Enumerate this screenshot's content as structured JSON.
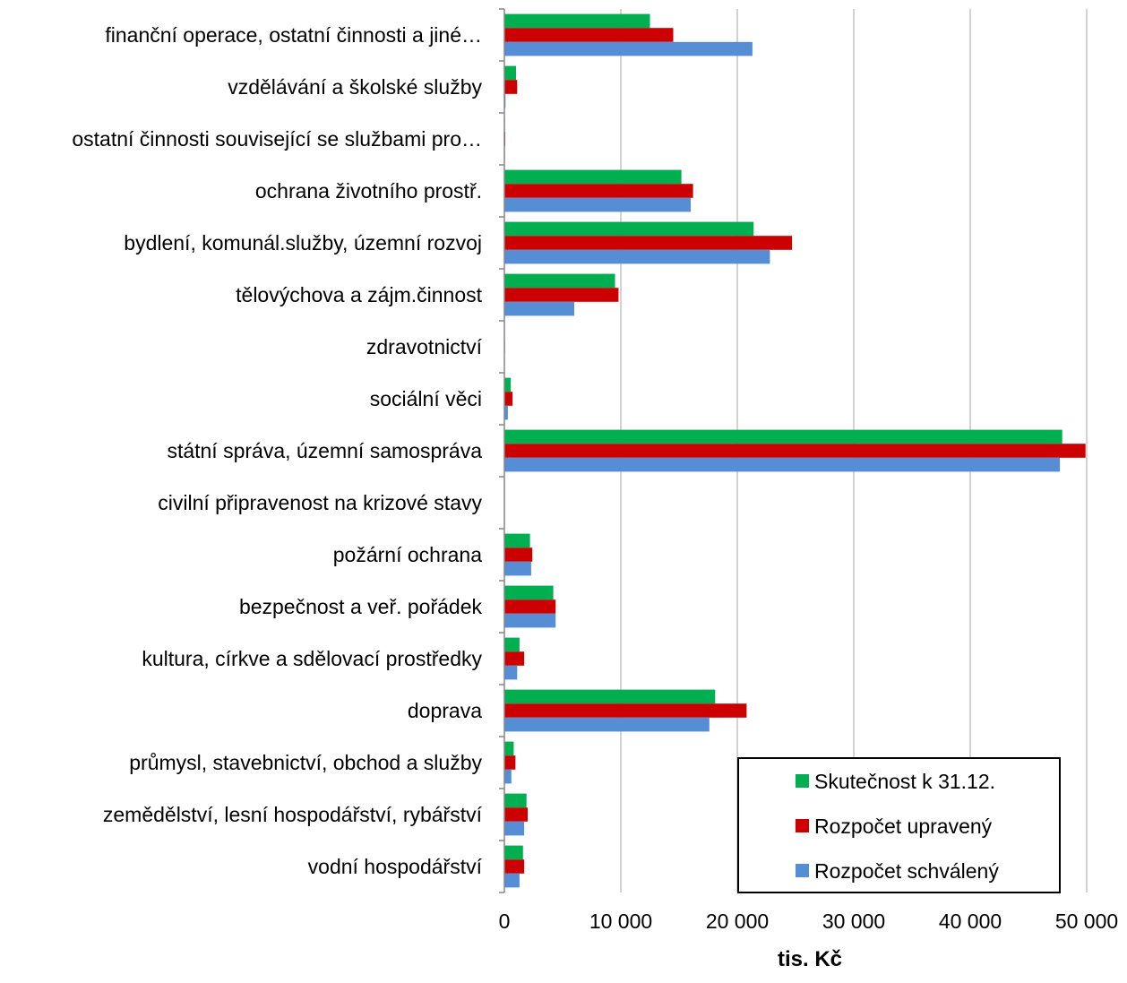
{
  "chart_data": {
    "type": "bar",
    "orientation": "horizontal",
    "xlabel": "tis. Kč",
    "xlim": [
      0,
      50000
    ],
    "xticks": [
      0,
      10000,
      20000,
      30000,
      40000,
      50000
    ],
    "xtick_labels": [
      "0",
      "10 000",
      "20 000",
      "30 000",
      "40 000",
      "50 000"
    ],
    "grid": "vertical",
    "legend_position": "bottom-right",
    "categories": [
      "finanční operace, ostatní činnosti a jiné…",
      "vzdělávání a školské služby",
      "ostatní činnosti související se službami pro…",
      "ochrana životního prostř.",
      "bydlení, komunál.služby, územní rozvoj",
      "tělovýchova a zájm.činnost",
      "zdravotnictví",
      "sociální věci",
      "státní správa, územní samospráva",
      "civilní připravenost na krizové stavy",
      "požární ochrana",
      "bezpečnost a veř. pořádek",
      "kultura, církve a sdělovací prostředky",
      "doprava",
      "průmysl, stavebnictví, obchod a služby",
      "zemědělství, lesní hospodářství, rybářství",
      "vodní hospodářství"
    ],
    "series": [
      {
        "name": "Skutečnost k 31.12.",
        "color": "#00B050",
        "values": [
          12500,
          1000,
          50,
          15200,
          21400,
          9500,
          30,
          550,
          47900,
          0,
          2200,
          4200,
          1300,
          18100,
          800,
          1900,
          1600
        ]
      },
      {
        "name": "Rozpočet upravený",
        "color": "#CC0000",
        "values": [
          14500,
          1100,
          80,
          16200,
          24700,
          9800,
          50,
          700,
          49900,
          0,
          2400,
          4400,
          1700,
          20800,
          950,
          2000,
          1700
        ]
      },
      {
        "name": "Rozpočet schválený",
        "color": "#558ED5",
        "values": [
          21300,
          100,
          50,
          16000,
          22800,
          6000,
          30,
          300,
          47700,
          0,
          2300,
          4400,
          1100,
          17600,
          600,
          1700,
          1300
        ]
      }
    ]
  }
}
